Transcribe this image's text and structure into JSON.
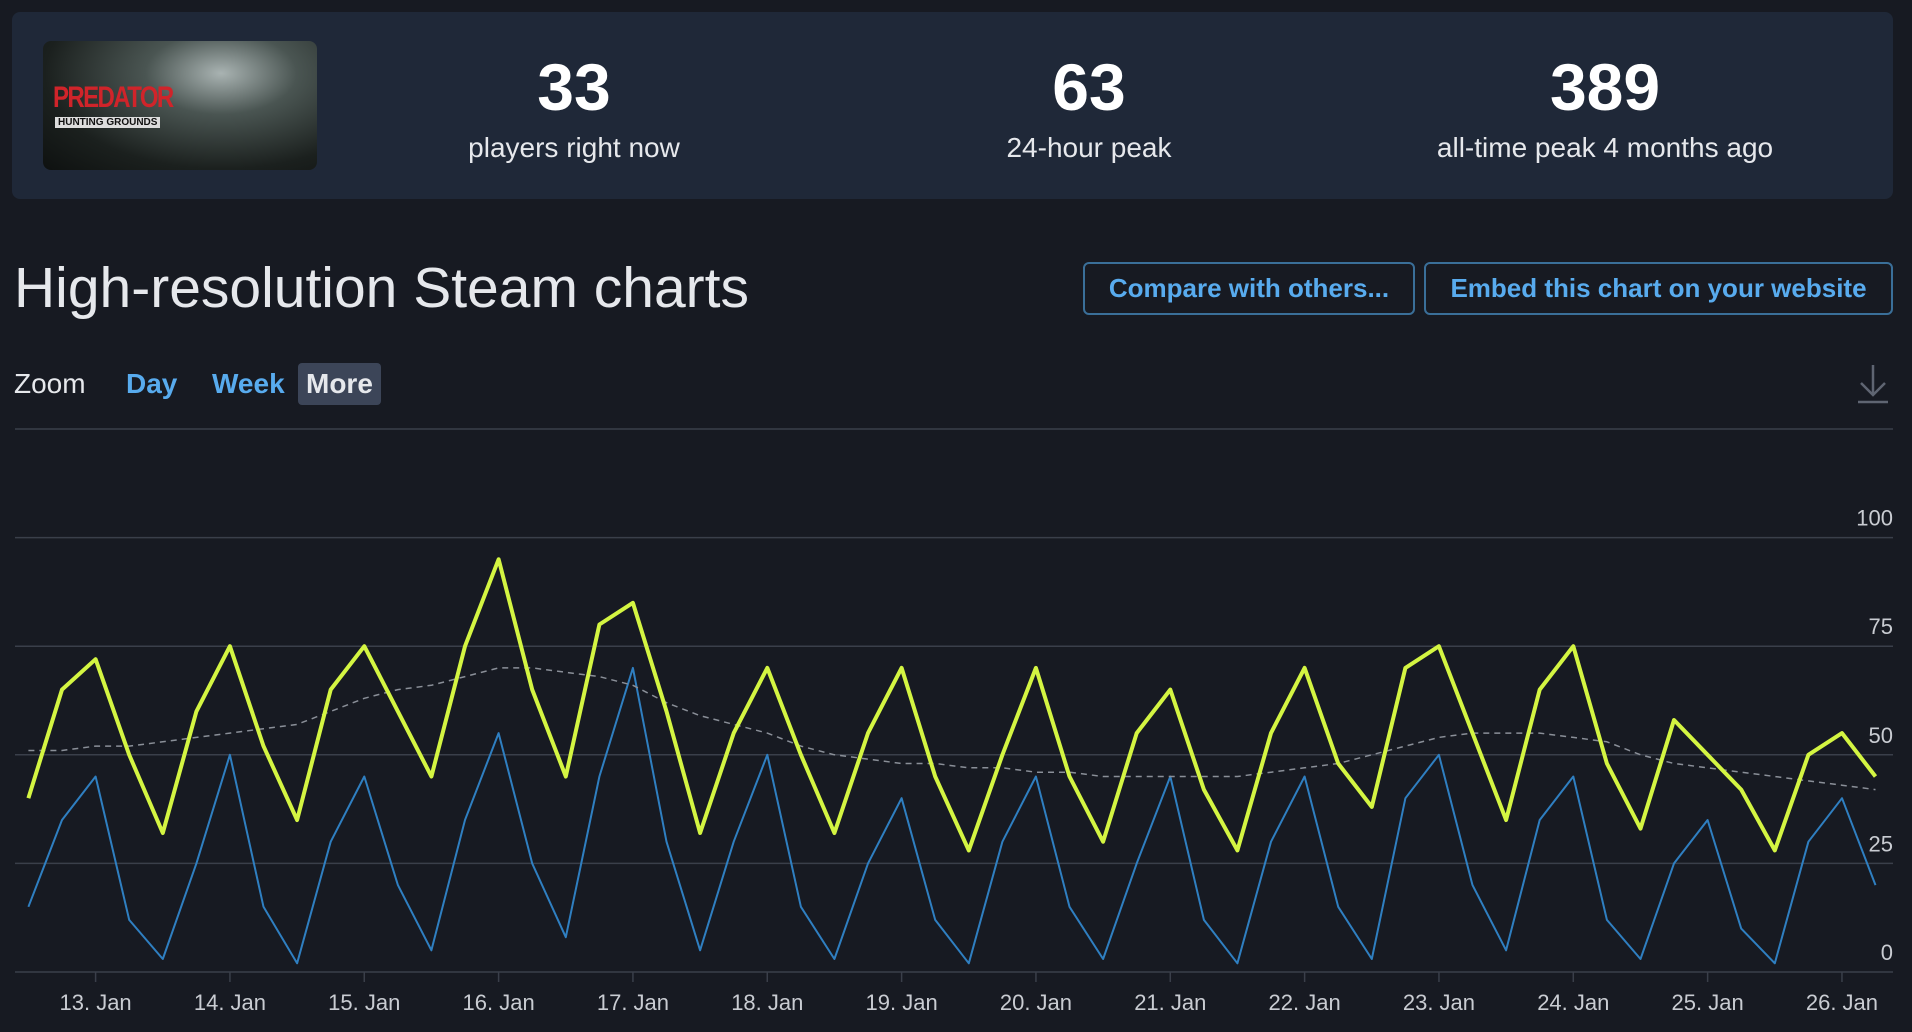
{
  "header": {
    "logo": {
      "title": "PREDATOR",
      "subtitle": "HUNTING GROUNDS"
    },
    "stats": [
      {
        "value": 33,
        "label": "players right now"
      },
      {
        "value": 63,
        "label": "24-hour peak"
      },
      {
        "value": 389,
        "label": "all-time peak 4 months ago"
      }
    ]
  },
  "page": {
    "title": "High-resolution Steam charts",
    "buttons": [
      "Compare with others...",
      "Embed this chart on your website"
    ],
    "zoom": {
      "label": "Zoom",
      "options": [
        "Day",
        "Week",
        "More"
      ],
      "active": 2
    }
  },
  "chart_data": {
    "type": "line",
    "x": [
      12.5,
      12.75,
      13,
      13.25,
      13.5,
      13.75,
      14,
      14.25,
      14.5,
      14.75,
      15,
      15.25,
      15.5,
      15.75,
      16,
      16.25,
      16.5,
      16.75,
      17,
      17.25,
      17.5,
      17.75,
      18,
      18.25,
      18.5,
      18.75,
      19,
      19.25,
      19.5,
      19.75,
      20,
      20.25,
      20.5,
      20.75,
      21,
      21.25,
      21.5,
      21.75,
      22,
      22.25,
      22.5,
      22.75,
      23,
      23.25,
      23.5,
      23.75,
      24,
      24.25,
      24.5,
      24.75,
      25,
      25.25,
      25.5,
      25.75,
      26,
      26.25
    ],
    "series": [
      {
        "color": "#2f7fc1",
        "width": 2,
        "values": [
          15,
          35,
          45,
          12,
          3,
          25,
          50,
          15,
          2,
          30,
          45,
          20,
          5,
          35,
          55,
          25,
          8,
          45,
          70,
          30,
          5,
          30,
          50,
          15,
          3,
          25,
          40,
          12,
          2,
          30,
          45,
          15,
          3,
          25,
          45,
          12,
          2,
          30,
          45,
          15,
          3,
          40,
          50,
          20,
          5,
          35,
          45,
          12,
          3,
          25,
          35,
          10,
          2,
          30,
          40,
          20
        ]
      },
      {
        "color": "#8a8f98",
        "width": 1.5,
        "dashed": true,
        "values": [
          51,
          51,
          52,
          52,
          53,
          54,
          55,
          56,
          57,
          60,
          63,
          65,
          66,
          68,
          70,
          70,
          69,
          68,
          66,
          62,
          59,
          57,
          55,
          52,
          50,
          49,
          48,
          48,
          47,
          47,
          46,
          46,
          45,
          45,
          45,
          45,
          45,
          46,
          47,
          48,
          50,
          52,
          54,
          55,
          55,
          55,
          54,
          53,
          50,
          48,
          47,
          46,
          45,
          44,
          43,
          42
        ]
      },
      {
        "color": "#d4f542",
        "width": 4,
        "values": [
          40,
          65,
          72,
          50,
          32,
          60,
          75,
          52,
          35,
          65,
          75,
          60,
          45,
          75,
          95,
          65,
          45,
          80,
          85,
          60,
          32,
          55,
          70,
          50,
          32,
          55,
          70,
          45,
          28,
          50,
          70,
          45,
          30,
          55,
          65,
          42,
          28,
          55,
          70,
          48,
          38,
          70,
          75,
          55,
          35,
          65,
          75,
          48,
          33,
          58,
          50,
          42,
          28,
          50,
          55,
          45
        ]
      }
    ],
    "xlim": [
      12.4,
      26.38
    ],
    "ylim": [
      0,
      125
    ],
    "xticks": [
      {
        "value": 13,
        "label": "13. Jan"
      },
      {
        "value": 14,
        "label": "14. Jan"
      },
      {
        "value": 15,
        "label": "15. Jan"
      },
      {
        "value": 16,
        "label": "16. Jan"
      },
      {
        "value": 17,
        "label": "17. Jan"
      },
      {
        "value": 18,
        "label": "18. Jan"
      },
      {
        "value": 19,
        "label": "19. Jan"
      },
      {
        "value": 20,
        "label": "20. Jan"
      },
      {
        "value": 21,
        "label": "21. Jan"
      },
      {
        "value": 22,
        "label": "22. Jan"
      },
      {
        "value": 23,
        "label": "23. Jan"
      },
      {
        "value": 24,
        "label": "24. Jan"
      },
      {
        "value": 25,
        "label": "25. Jan"
      },
      {
        "value": 26,
        "label": "26. Jan"
      }
    ],
    "yticks": [
      0,
      25,
      50,
      75,
      100
    ],
    "grid": true
  }
}
